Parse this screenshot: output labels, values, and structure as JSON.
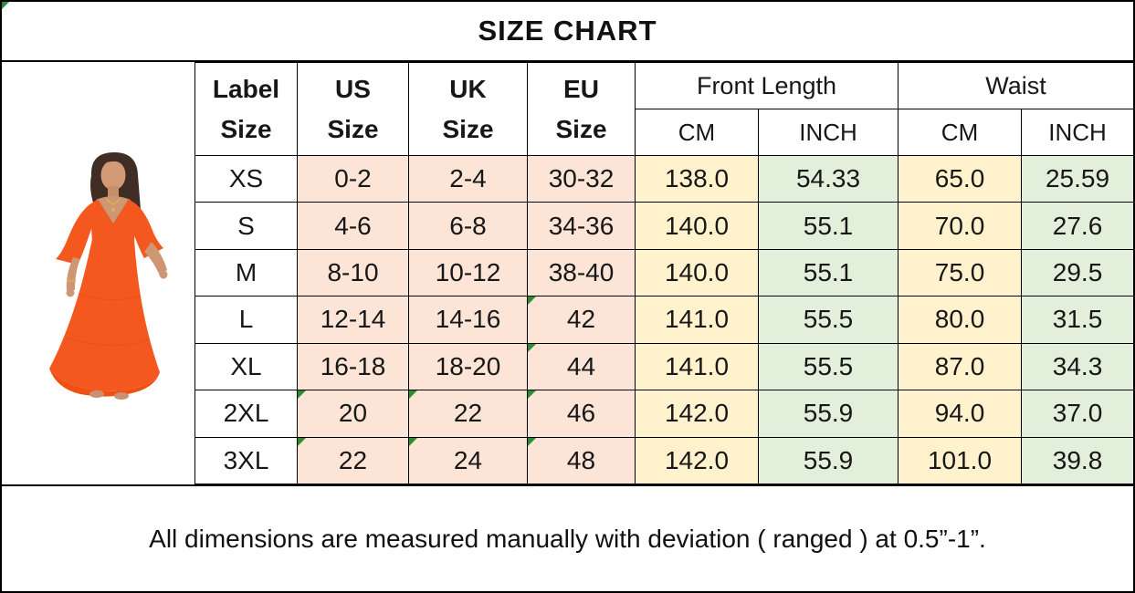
{
  "title": "SIZE CHART",
  "table": {
    "size_headers": [
      "Label\nSize",
      "US\nSize",
      "UK\nSize",
      "EU\nSize"
    ],
    "measure_groups": [
      {
        "label": "Front Length"
      },
      {
        "label": "Waist"
      }
    ],
    "units": [
      "CM",
      "INCH",
      "CM",
      "INCH"
    ],
    "rows": [
      {
        "label": "XS",
        "us": "0-2",
        "uk": "2-4",
        "eu": "30-32",
        "front_cm": "138.0",
        "front_inch": "54.33",
        "waist_cm": "65.0",
        "waist_inch": "25.59",
        "flags": []
      },
      {
        "label": "S",
        "us": "4-6",
        "uk": "6-8",
        "eu": "34-36",
        "front_cm": "140.0",
        "front_inch": "55.1",
        "waist_cm": "70.0",
        "waist_inch": "27.6",
        "flags": []
      },
      {
        "label": "M",
        "us": "8-10",
        "uk": "10-12",
        "eu": "38-40",
        "front_cm": "140.0",
        "front_inch": "55.1",
        "waist_cm": "75.0",
        "waist_inch": "29.5",
        "flags": []
      },
      {
        "label": "L",
        "us": "12-14",
        "uk": "14-16",
        "eu": "42",
        "front_cm": "141.0",
        "front_inch": "55.5",
        "waist_cm": "80.0",
        "waist_inch": "31.5",
        "flags": [
          "eu"
        ]
      },
      {
        "label": "XL",
        "us": "16-18",
        "uk": "18-20",
        "eu": "44",
        "front_cm": "141.0",
        "front_inch": "55.5",
        "waist_cm": "87.0",
        "waist_inch": "34.3",
        "flags": [
          "eu"
        ]
      },
      {
        "label": "2XL",
        "us": "20",
        "uk": "22",
        "eu": "46",
        "front_cm": "142.0",
        "front_inch": "55.9",
        "waist_cm": "94.0",
        "waist_inch": "37.0",
        "flags": [
          "us",
          "uk",
          "eu"
        ]
      },
      {
        "label": "3XL",
        "us": "22",
        "uk": "24",
        "eu": "48",
        "front_cm": "142.0",
        "front_inch": "55.9",
        "waist_cm": "101.0",
        "waist_inch": "39.8",
        "flags": [
          "us",
          "uk",
          "eu"
        ]
      }
    ]
  },
  "footer": {
    "note": "All dimensions are measured manually with deviation  ( ranged ) at 0.5”-1”."
  },
  "colors": {
    "peach": "#fce4d6",
    "yellow": "#fff2cc",
    "green": "#e2efda",
    "flag": "#2f8b35",
    "dress": "#f5581f",
    "hair": "#402e26",
    "skin": "#cf9674"
  }
}
